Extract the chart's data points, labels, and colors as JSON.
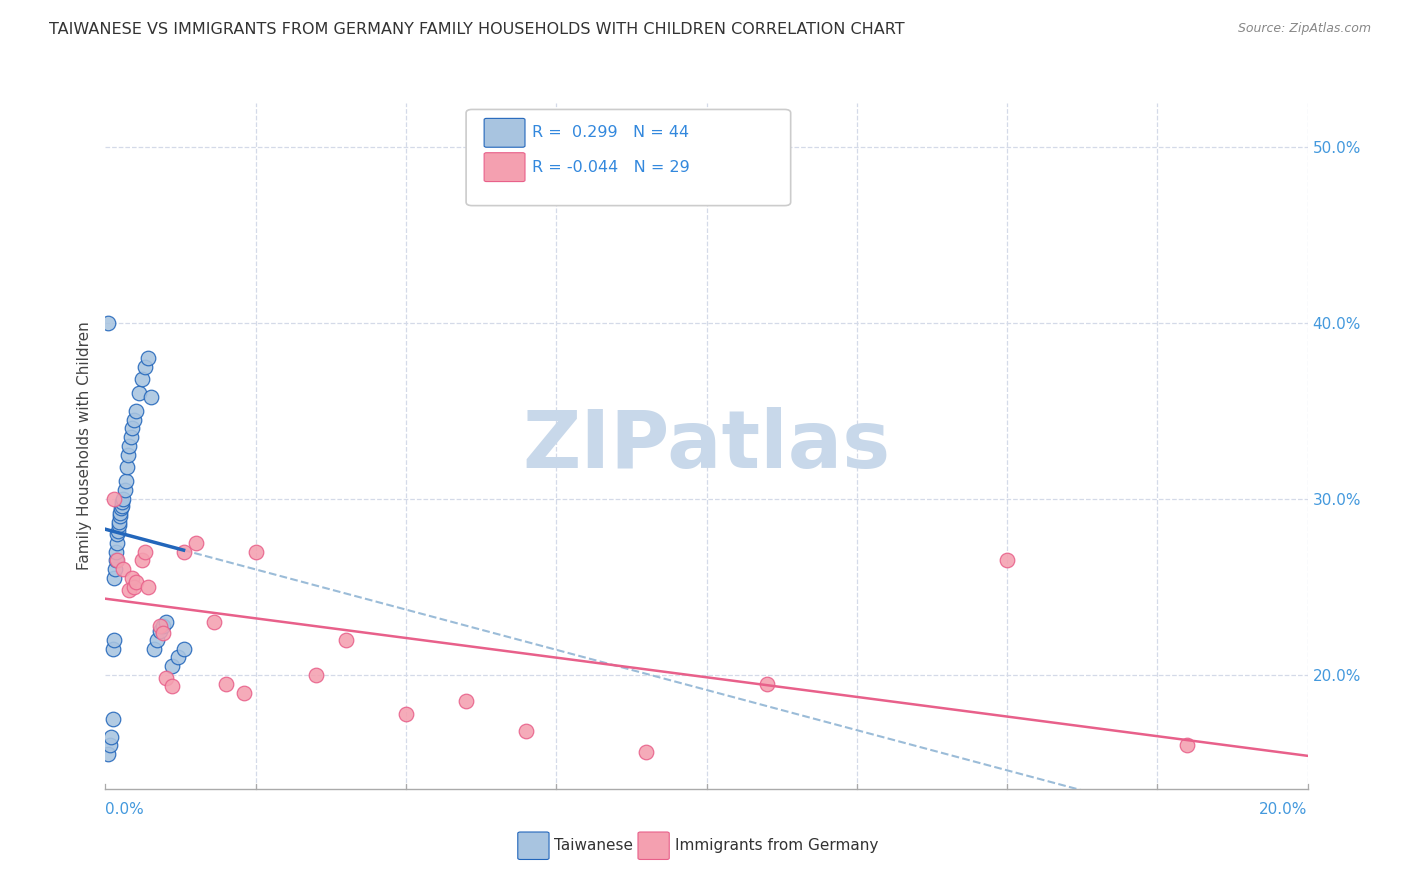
{
  "title": "TAIWANESE VS IMMIGRANTS FROM GERMANY FAMILY HOUSEHOLDS WITH CHILDREN CORRELATION CHART",
  "source": "Source: ZipAtlas.com",
  "ylabel": "Family Households with Children",
  "right_yticks": [
    "20.0%",
    "30.0%",
    "40.0%",
    "50.0%"
  ],
  "right_ytick_vals": [
    0.2,
    0.3,
    0.4,
    0.5
  ],
  "xlim": [
    0.0,
    0.2
  ],
  "ylim": [
    0.135,
    0.525
  ],
  "legend_blue_r": "0.299",
  "legend_blue_n": "44",
  "legend_pink_r": "-0.044",
  "legend_pink_n": "29",
  "taiwanese_x": [
    0.0005,
    0.0008,
    0.001,
    0.0012,
    0.0013,
    0.0014,
    0.0015,
    0.0016,
    0.0017,
    0.0018,
    0.0019,
    0.002,
    0.0021,
    0.0022,
    0.0023,
    0.0024,
    0.0025,
    0.0026,
    0.0027,
    0.0028,
    0.003,
    0.0032,
    0.0034,
    0.0036,
    0.0038,
    0.004,
    0.0042,
    0.0045,
    0.0048,
    0.005,
    0.0055,
    0.006,
    0.0065,
    0.007,
    0.0075,
    0.008,
    0.0085,
    0.009,
    0.0095,
    0.01,
    0.011,
    0.012,
    0.013,
    0.0005
  ],
  "taiwanese_y": [
    0.155,
    0.16,
    0.165,
    0.175,
    0.215,
    0.22,
    0.255,
    0.26,
    0.265,
    0.27,
    0.275,
    0.28,
    0.282,
    0.285,
    0.287,
    0.29,
    0.292,
    0.295,
    0.296,
    0.298,
    0.3,
    0.305,
    0.31,
    0.318,
    0.325,
    0.33,
    0.335,
    0.34,
    0.345,
    0.35,
    0.36,
    0.368,
    0.375,
    0.38,
    0.358,
    0.215,
    0.22,
    0.225,
    0.228,
    0.23,
    0.205,
    0.21,
    0.215,
    0.4
  ],
  "germany_x": [
    0.0015,
    0.002,
    0.003,
    0.004,
    0.0045,
    0.0048,
    0.005,
    0.006,
    0.0065,
    0.007,
    0.009,
    0.0095,
    0.01,
    0.011,
    0.013,
    0.015,
    0.018,
    0.02,
    0.023,
    0.025,
    0.035,
    0.04,
    0.05,
    0.06,
    0.07,
    0.09,
    0.11,
    0.15,
    0.18
  ],
  "germany_y": [
    0.3,
    0.265,
    0.26,
    0.248,
    0.255,
    0.25,
    0.253,
    0.265,
    0.27,
    0.25,
    0.228,
    0.224,
    0.198,
    0.194,
    0.27,
    0.275,
    0.23,
    0.195,
    0.19,
    0.27,
    0.2,
    0.22,
    0.178,
    0.185,
    0.168,
    0.156,
    0.195,
    0.265,
    0.16
  ],
  "blue_color": "#a8c4e0",
  "pink_color": "#f4a0b0",
  "blue_line_color": "#2266bb",
  "pink_line_color": "#e8608a",
  "dashed_line_color": "#9bbcd8",
  "background_color": "#ffffff",
  "grid_color": "#d4dae8",
  "watermark_text": "ZIPatlas",
  "watermark_color": "#c8d8ea"
}
